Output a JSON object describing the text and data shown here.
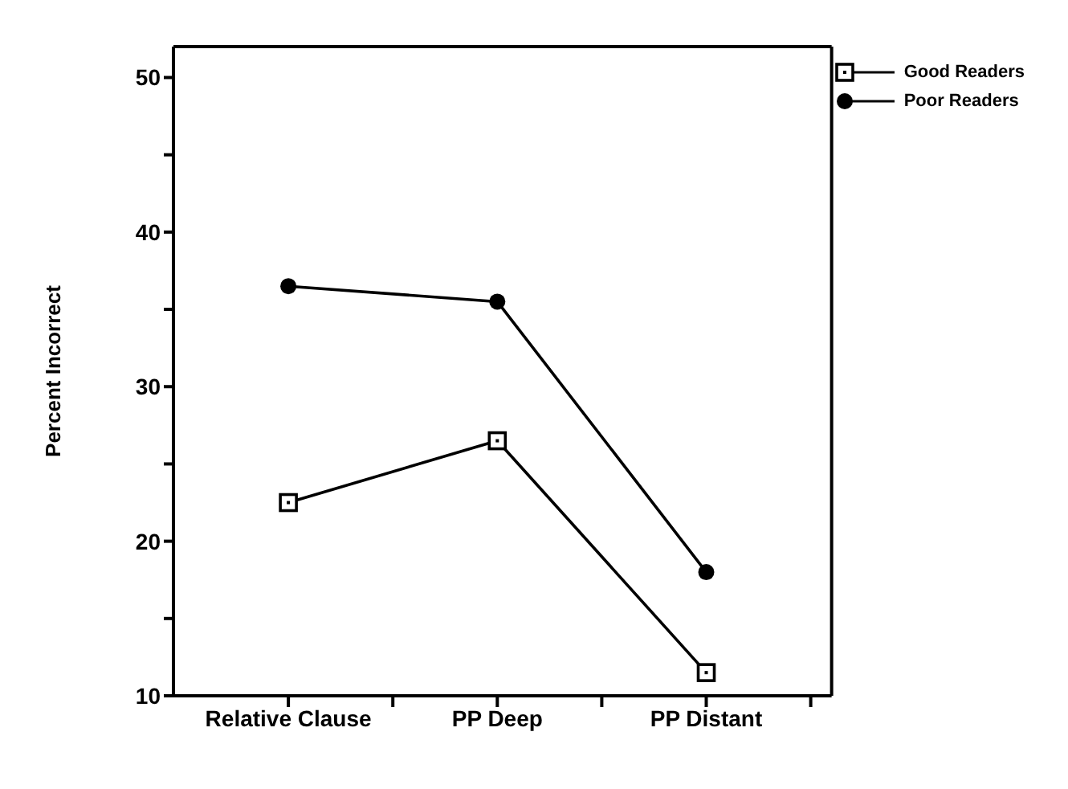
{
  "chart_data": {
    "type": "line",
    "ylabel": "Percent Incorrect",
    "categories": [
      "Relative Clause",
      "PP Deep",
      "PP Distant"
    ],
    "series": [
      {
        "name": "Good Readers",
        "color": "#000000",
        "marker": "square",
        "values": [
          22.5,
          26.5,
          11.5
        ]
      },
      {
        "name": "Poor Readers",
        "color": "#000000",
        "marker": "circle",
        "values": [
          36.5,
          35.5,
          18
        ]
      }
    ],
    "ylim": [
      10,
      52
    ],
    "yticks": [
      10,
      {
        "value": 15,
        "label": null
      },
      20,
      {
        "value": 25,
        "label": null
      },
      30,
      {
        "value": 35,
        "label": null
      },
      40,
      {
        "value": 45,
        "label": null
      },
      50
    ],
    "grid": false,
    "legend": "top right",
    "line_style": "solid"
  }
}
